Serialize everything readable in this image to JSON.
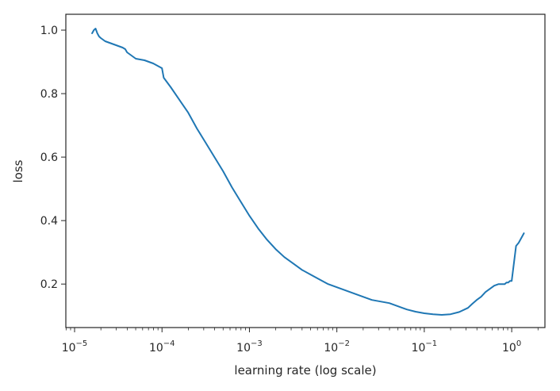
{
  "chart_data": {
    "type": "line",
    "title": "",
    "xlabel": "learning rate (log scale)",
    "ylabel": "loss",
    "xscale": "log",
    "xlim_log10": [
      -5.1,
      0.38
    ],
    "ylim": [
      0.063,
      1.05
    ],
    "x_ticks": [
      {
        "exp": -5,
        "base": "10",
        "power": "−5"
      },
      {
        "exp": -4,
        "base": "10",
        "power": "−4"
      },
      {
        "exp": -3,
        "base": "10",
        "power": "−3"
      },
      {
        "exp": -2,
        "base": "10",
        "power": "−2"
      },
      {
        "exp": -1,
        "base": "10",
        "power": "−1"
      },
      {
        "exp": 0,
        "base": "10",
        "power": "0"
      }
    ],
    "y_ticks": [
      {
        "value": 0.2,
        "label": "0.2"
      },
      {
        "value": 0.4,
        "label": "0.4"
      },
      {
        "value": 0.6,
        "label": "0.6"
      },
      {
        "value": 0.8,
        "label": "0.8"
      },
      {
        "value": 1.0,
        "label": "1.0"
      }
    ],
    "grid": false,
    "line_color": "#1f77b4",
    "series": [
      {
        "name": "loss",
        "log10_lr": [
          -4.8,
          -4.78,
          -4.76,
          -4.74,
          -4.72,
          -4.7,
          -4.65,
          -4.6,
          -4.55,
          -4.5,
          -4.45,
          -4.42,
          -4.4,
          -4.35,
          -4.3,
          -4.2,
          -4.1,
          -4.0,
          -3.98,
          -3.9,
          -3.8,
          -3.7,
          -3.6,
          -3.5,
          -3.4,
          -3.3,
          -3.2,
          -3.1,
          -3.0,
          -2.9,
          -2.8,
          -2.7,
          -2.6,
          -2.5,
          -2.4,
          -2.3,
          -2.2,
          -2.1,
          -2.0,
          -1.9,
          -1.8,
          -1.7,
          -1.6,
          -1.5,
          -1.4,
          -1.3,
          -1.2,
          -1.1,
          -1.0,
          -0.9,
          -0.8,
          -0.7,
          -0.6,
          -0.5,
          -0.45,
          -0.4,
          -0.35,
          -0.3,
          -0.2,
          -0.15,
          -0.1,
          -0.08,
          -0.06,
          -0.04,
          -0.02,
          0.0,
          0.05,
          0.08,
          0.1,
          0.12,
          0.14
        ],
        "loss": [
          0.99,
          1.0,
          1.005,
          0.99,
          0.98,
          0.975,
          0.965,
          0.96,
          0.955,
          0.95,
          0.945,
          0.94,
          0.93,
          0.92,
          0.91,
          0.905,
          0.895,
          0.88,
          0.85,
          0.82,
          0.78,
          0.74,
          0.69,
          0.645,
          0.6,
          0.555,
          0.505,
          0.46,
          0.415,
          0.375,
          0.34,
          0.31,
          0.285,
          0.265,
          0.245,
          0.23,
          0.215,
          0.2,
          0.19,
          0.18,
          0.17,
          0.16,
          0.15,
          0.145,
          0.14,
          0.13,
          0.12,
          0.113,
          0.108,
          0.105,
          0.103,
          0.105,
          0.112,
          0.125,
          0.138,
          0.15,
          0.16,
          0.175,
          0.195,
          0.2,
          0.2,
          0.2,
          0.205,
          0.205,
          0.21,
          0.21,
          0.32,
          0.33,
          0.34,
          0.35,
          0.36
        ]
      }
    ]
  }
}
